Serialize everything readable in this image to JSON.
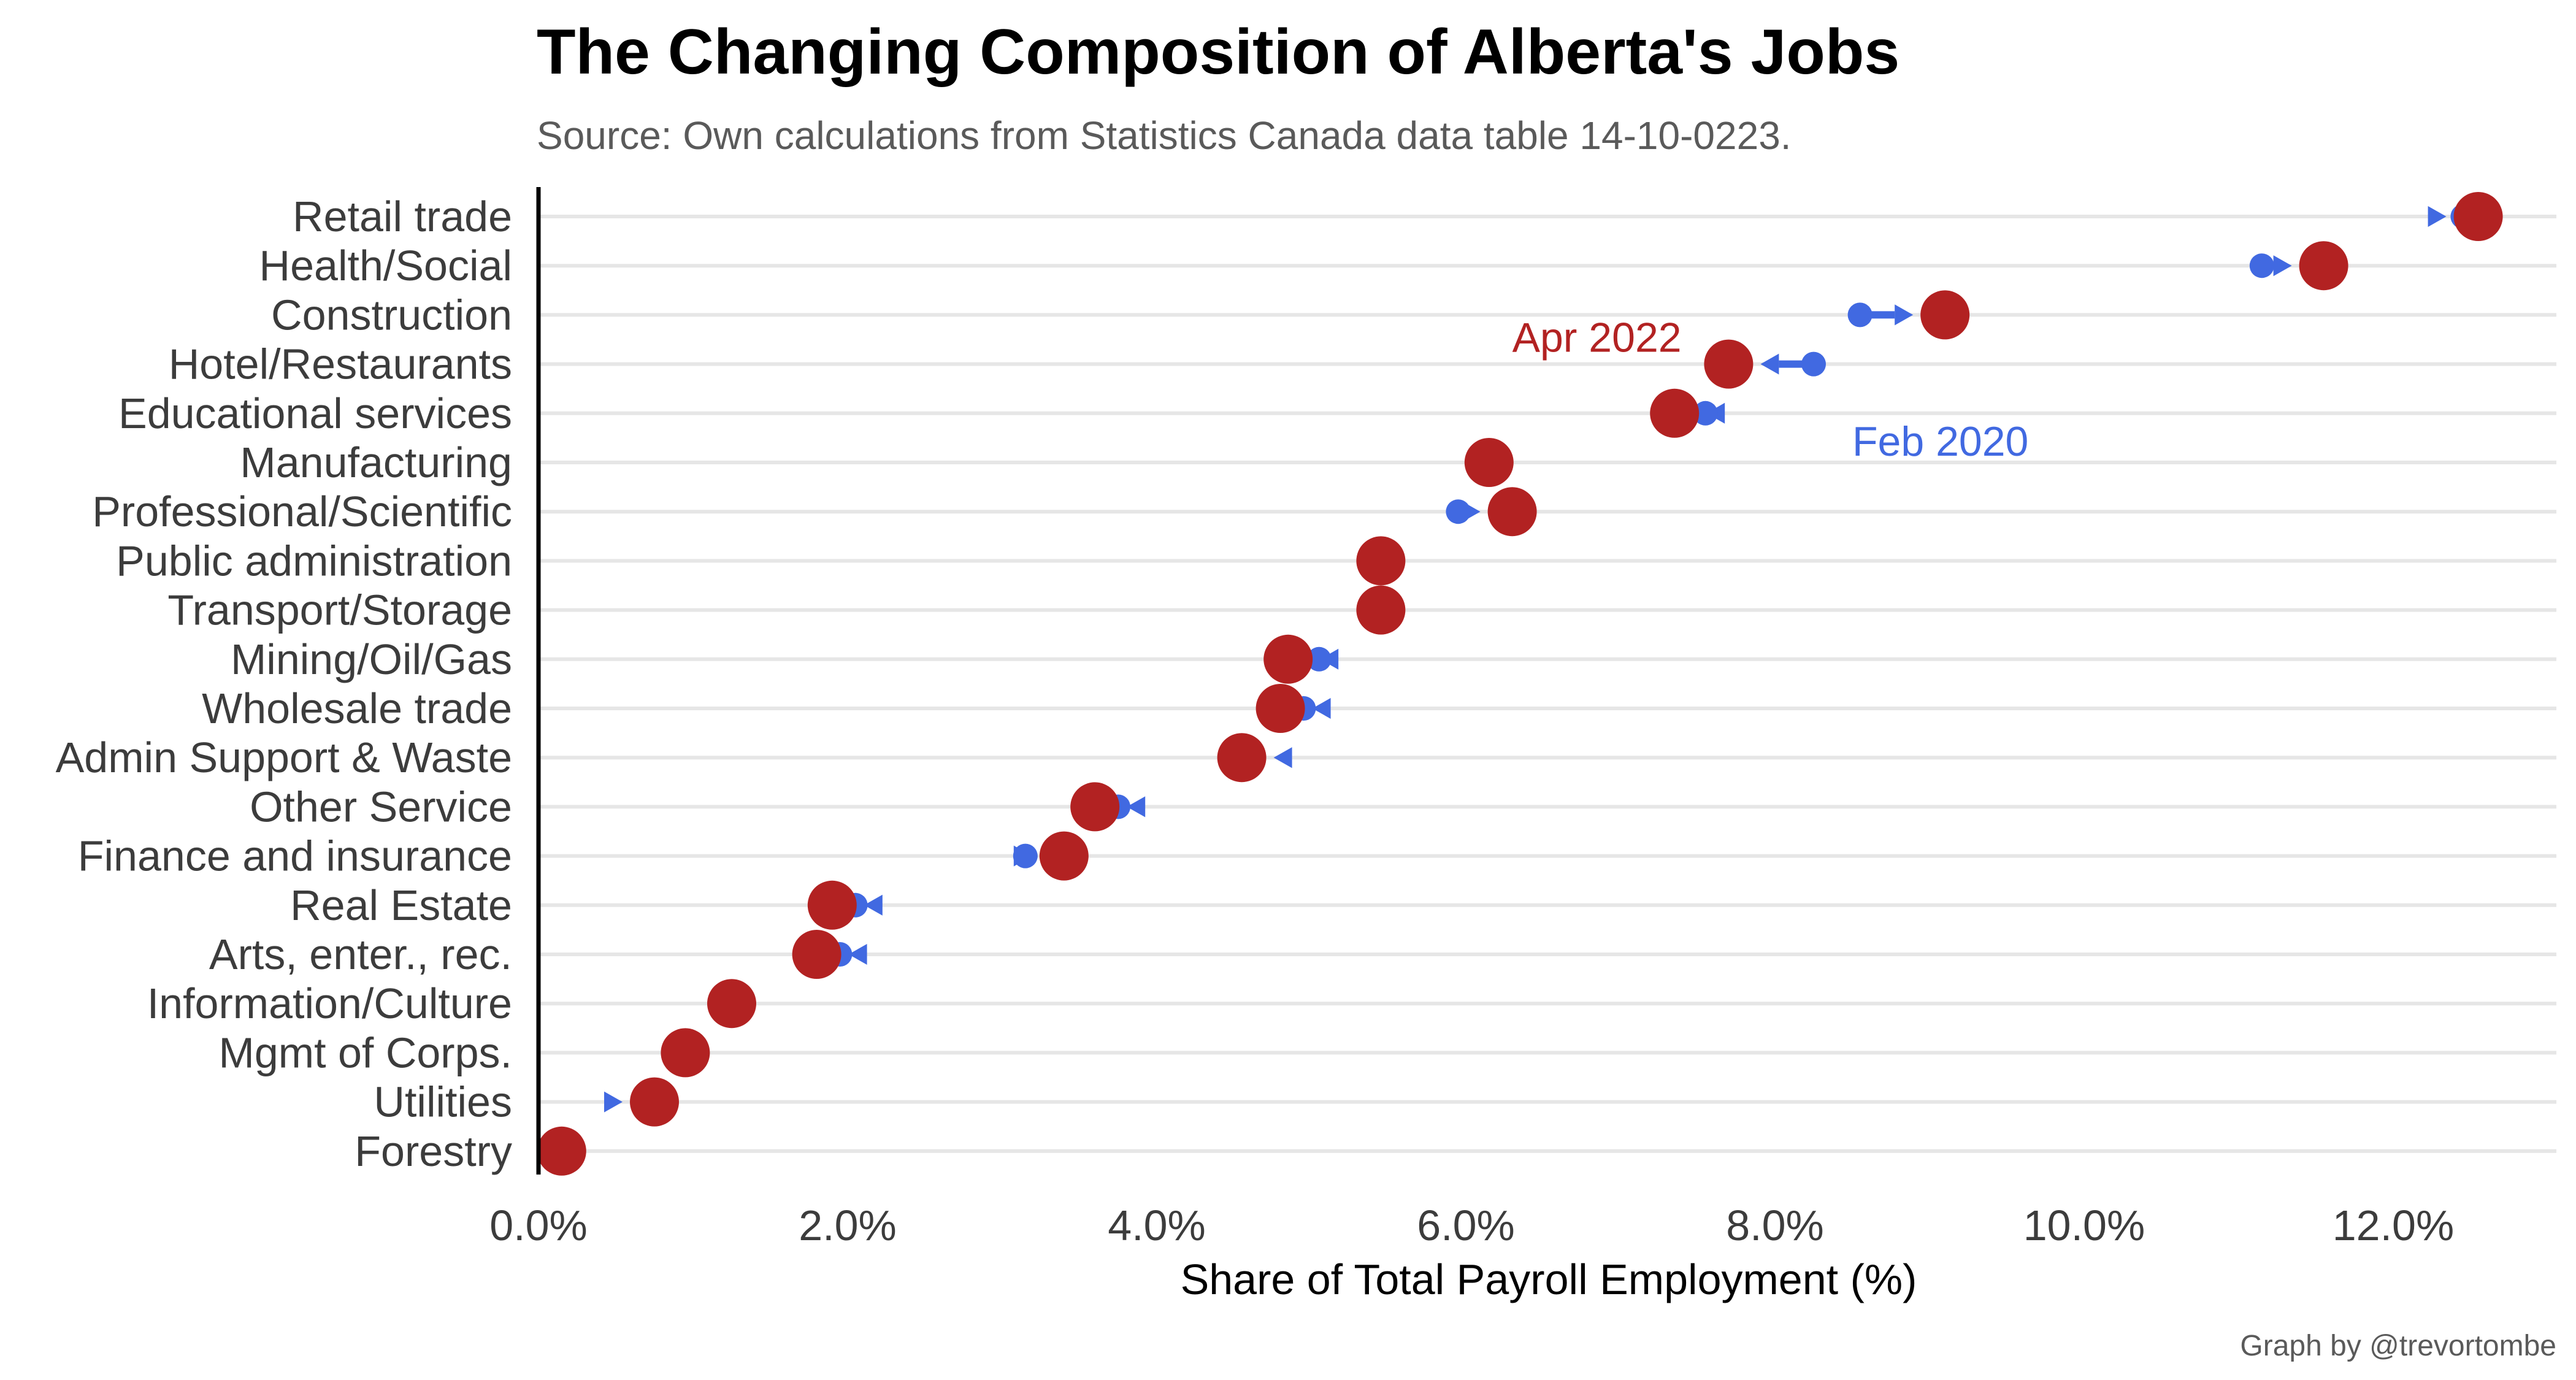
{
  "colors": {
    "before": "#4169e1",
    "after": "#b22222",
    "grid": "#e6e6e6",
    "axis": "#000000"
  },
  "chart_data": {
    "type": "dumbbell",
    "title": "The Changing Composition of Alberta's Jobs",
    "subtitle": "Source: Own calculations from Statistics Canada data table 14-10-0223.",
    "xlabel": "Share of Total Payroll Employment (%)",
    "ylabel": "",
    "caption": "Graph by @trevortombe",
    "xlim": [
      0,
      13
    ],
    "xticks": [
      0,
      2,
      4,
      6,
      8,
      10,
      12
    ],
    "xtick_labels": [
      "0.0%",
      "2.0%",
      "4.0%",
      "6.0%",
      "8.0%",
      "10.0%",
      "12.0%"
    ],
    "grid": "horizontal",
    "legend": "none",
    "series": [
      {
        "name": "Feb 2020",
        "color": "#4169e1"
      },
      {
        "name": "Apr 2022",
        "color": "#b22222"
      }
    ],
    "categories": [
      "Retail trade",
      "Health/Social",
      "Construction",
      "Hotel/Restaurants",
      "Educational services",
      "Manufacturing",
      "Professional/Scientific",
      "Public administration",
      "Transport/Storage",
      "Mining/Oil/Gas",
      "Wholesale trade",
      "Admin Support & Waste",
      "Other Service",
      "Finance and insurance",
      "Real Estate",
      "Arts, enter., rec.",
      "Information/Culture",
      "Mgmt of Corps.",
      "Utilities",
      "Forestry"
    ],
    "feb_2020": [
      12.45,
      11.15,
      8.55,
      8.25,
      7.55,
      6.15,
      5.95,
      5.45,
      5.45,
      5.05,
      4.95,
      4.6,
      3.75,
      3.15,
      2.05,
      1.95,
      1.25,
      0.95,
      0.7,
      0.15
    ],
    "apr_2022": [
      12.55,
      11.55,
      9.1,
      7.7,
      7.35,
      6.15,
      6.3,
      5.45,
      5.45,
      4.85,
      4.8,
      4.55,
      3.6,
      3.4,
      1.9,
      1.8,
      1.25,
      0.95,
      0.75,
      0.15
    ],
    "annotations": [
      {
        "text": "Apr 2022",
        "series": "after",
        "x": 6.3,
        "category": "Hotel/Restaurants"
      },
      {
        "text": "Feb 2020",
        "series": "before",
        "x": 8.5,
        "category": "Educational services"
      }
    ]
  }
}
